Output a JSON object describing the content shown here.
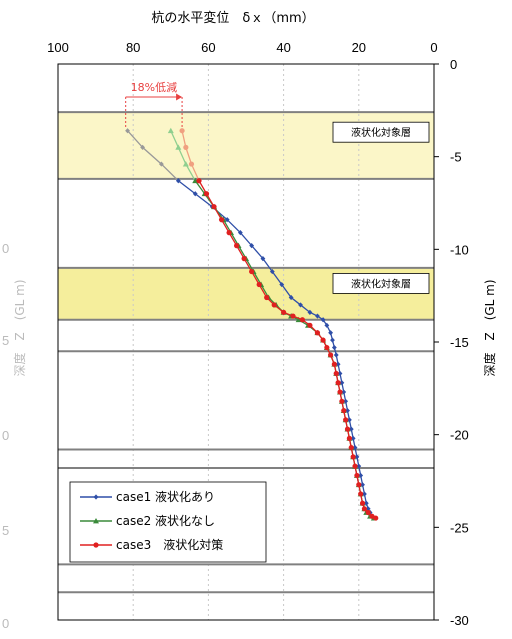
{
  "chart_data": {
    "type": "line",
    "title": "杭の水平変位　δｘ（mm）",
    "ylabel": "深度　Z　(GL m)",
    "ghost_ylabel": "深度　Z　(GL m)",
    "xlim": [
      100,
      0
    ],
    "ylim": [
      0,
      -30
    ],
    "x_ticks": [
      "100",
      "80",
      "60",
      "40",
      "20",
      "0"
    ],
    "y_ticks": [
      "0",
      "-5",
      "-10",
      "-15",
      "-20",
      "-25",
      "-30"
    ],
    "ghost_ticks": [
      "0",
      "5",
      "0",
      "5",
      "0"
    ],
    "liquefaction_layers": [
      {
        "top": -2.6,
        "bottom": -6.2,
        "label": "液状化対象層"
      },
      {
        "top": -11.0,
        "bottom": -13.8,
        "label": "液状化対象層"
      }
    ],
    "boundary_lines": [
      -2.6,
      -6.2,
      -11.0,
      -13.8,
      -15.5,
      -20.8,
      -21.8,
      -27.0,
      -28.5
    ],
    "annotation": {
      "text": "18%低減",
      "x_from": 82,
      "x_to": 67,
      "y": -1.2
    },
    "series": [
      {
        "name": "case1 液状化あり",
        "color": "#2f4fa8",
        "depth_color": "#999999",
        "marker": "diamond",
        "x": [
          81.5,
          77.5,
          72.5,
          68.0,
          63.5,
          59.0,
          55.0,
          51.5,
          48.5,
          45.5,
          43.0,
          40.5,
          38.0,
          35.5,
          33.0,
          31.0,
          29.5,
          28.5,
          27.5,
          27.0,
          26.5,
          26.0,
          25.5,
          25.0,
          24.5,
          24.0,
          23.5,
          23.0,
          22.5,
          22.0,
          21.5,
          21.0,
          20.5,
          20.0,
          19.5,
          19.0,
          18.5,
          18.0,
          17.5,
          17.0,
          16.5,
          16.0
        ],
        "z": [
          -3.6,
          -4.5,
          -5.4,
          -6.3,
          -7.0,
          -7.7,
          -8.4,
          -9.1,
          -9.8,
          -10.5,
          -11.2,
          -11.9,
          -12.6,
          -13.0,
          -13.4,
          -13.6,
          -13.8,
          -14.1,
          -14.5,
          -14.9,
          -15.3,
          -15.7,
          -16.2,
          -16.7,
          -17.2,
          -17.7,
          -18.2,
          -18.7,
          -19.2,
          -19.7,
          -20.2,
          -20.7,
          -21.2,
          -21.7,
          -22.2,
          -22.7,
          -23.2,
          -23.7,
          -24.0,
          -24.2,
          -24.4,
          -24.5
        ]
      },
      {
        "name": "case2 液状化なし",
        "color": "#3a8a3a",
        "depth_color": "#8fcf8f",
        "marker": "triangle",
        "x": [
          70.0,
          68.0,
          66.0,
          63.5,
          61.0,
          58.5,
          56.0,
          54.0,
          52.0,
          50.0,
          48.0,
          46.0,
          44.0,
          42.0,
          40.0,
          38.0,
          36.0,
          33.5,
          31.0,
          29.5,
          28.5,
          27.5,
          26.5,
          26.0,
          25.5,
          25.0,
          24.5,
          24.0,
          23.5,
          23.0,
          22.5,
          22.0,
          21.5,
          21.0,
          20.5,
          20.0,
          19.5,
          19.0,
          18.5,
          18.0,
          17.0,
          16.0
        ],
        "z": [
          -3.6,
          -4.5,
          -5.4,
          -6.3,
          -7.0,
          -7.7,
          -8.4,
          -9.1,
          -9.8,
          -10.5,
          -11.2,
          -11.9,
          -12.6,
          -13.0,
          -13.4,
          -13.6,
          -13.8,
          -14.1,
          -14.5,
          -14.9,
          -15.3,
          -15.7,
          -16.2,
          -16.7,
          -17.2,
          -17.7,
          -18.2,
          -18.7,
          -19.2,
          -19.7,
          -20.2,
          -20.7,
          -21.2,
          -21.7,
          -22.2,
          -22.7,
          -23.2,
          -23.7,
          -24.0,
          -24.2,
          -24.4,
          -24.5
        ]
      },
      {
        "name": "case3　液状化対策",
        "color": "#e02020",
        "depth_color": "#f0a080",
        "marker": "circle",
        "x": [
          67.0,
          66.0,
          64.5,
          62.5,
          60.5,
          58.5,
          56.5,
          54.5,
          52.5,
          50.5,
          48.5,
          46.5,
          44.5,
          42.5,
          40.0,
          37.5,
          35.0,
          33.0,
          31.0,
          29.5,
          28.5,
          27.5,
          26.5,
          26.0,
          25.5,
          25.0,
          24.5,
          24.0,
          23.5,
          23.0,
          22.5,
          22.0,
          21.5,
          21.0,
          20.5,
          20.0,
          19.5,
          19.0,
          18.5,
          17.5,
          16.5,
          15.5
        ],
        "z": [
          -3.6,
          -4.5,
          -5.4,
          -6.3,
          -7.0,
          -7.7,
          -8.4,
          -9.1,
          -9.8,
          -10.5,
          -11.2,
          -11.9,
          -12.6,
          -13.0,
          -13.4,
          -13.6,
          -13.8,
          -14.1,
          -14.5,
          -14.9,
          -15.3,
          -15.7,
          -16.2,
          -16.7,
          -17.2,
          -17.7,
          -18.2,
          -18.7,
          -19.2,
          -19.7,
          -20.2,
          -20.7,
          -21.2,
          -21.7,
          -22.2,
          -22.7,
          -23.2,
          -23.7,
          -24.0,
          -24.2,
          -24.4,
          -24.5
        ]
      }
    ],
    "legend": {
      "placement": "bottom-left"
    },
    "colors": {
      "layer_fill_upper": "#fbf6c8",
      "layer_fill_lower": "#f5ee9c",
      "boundary": "#808080",
      "annotation": "#e84040"
    }
  }
}
